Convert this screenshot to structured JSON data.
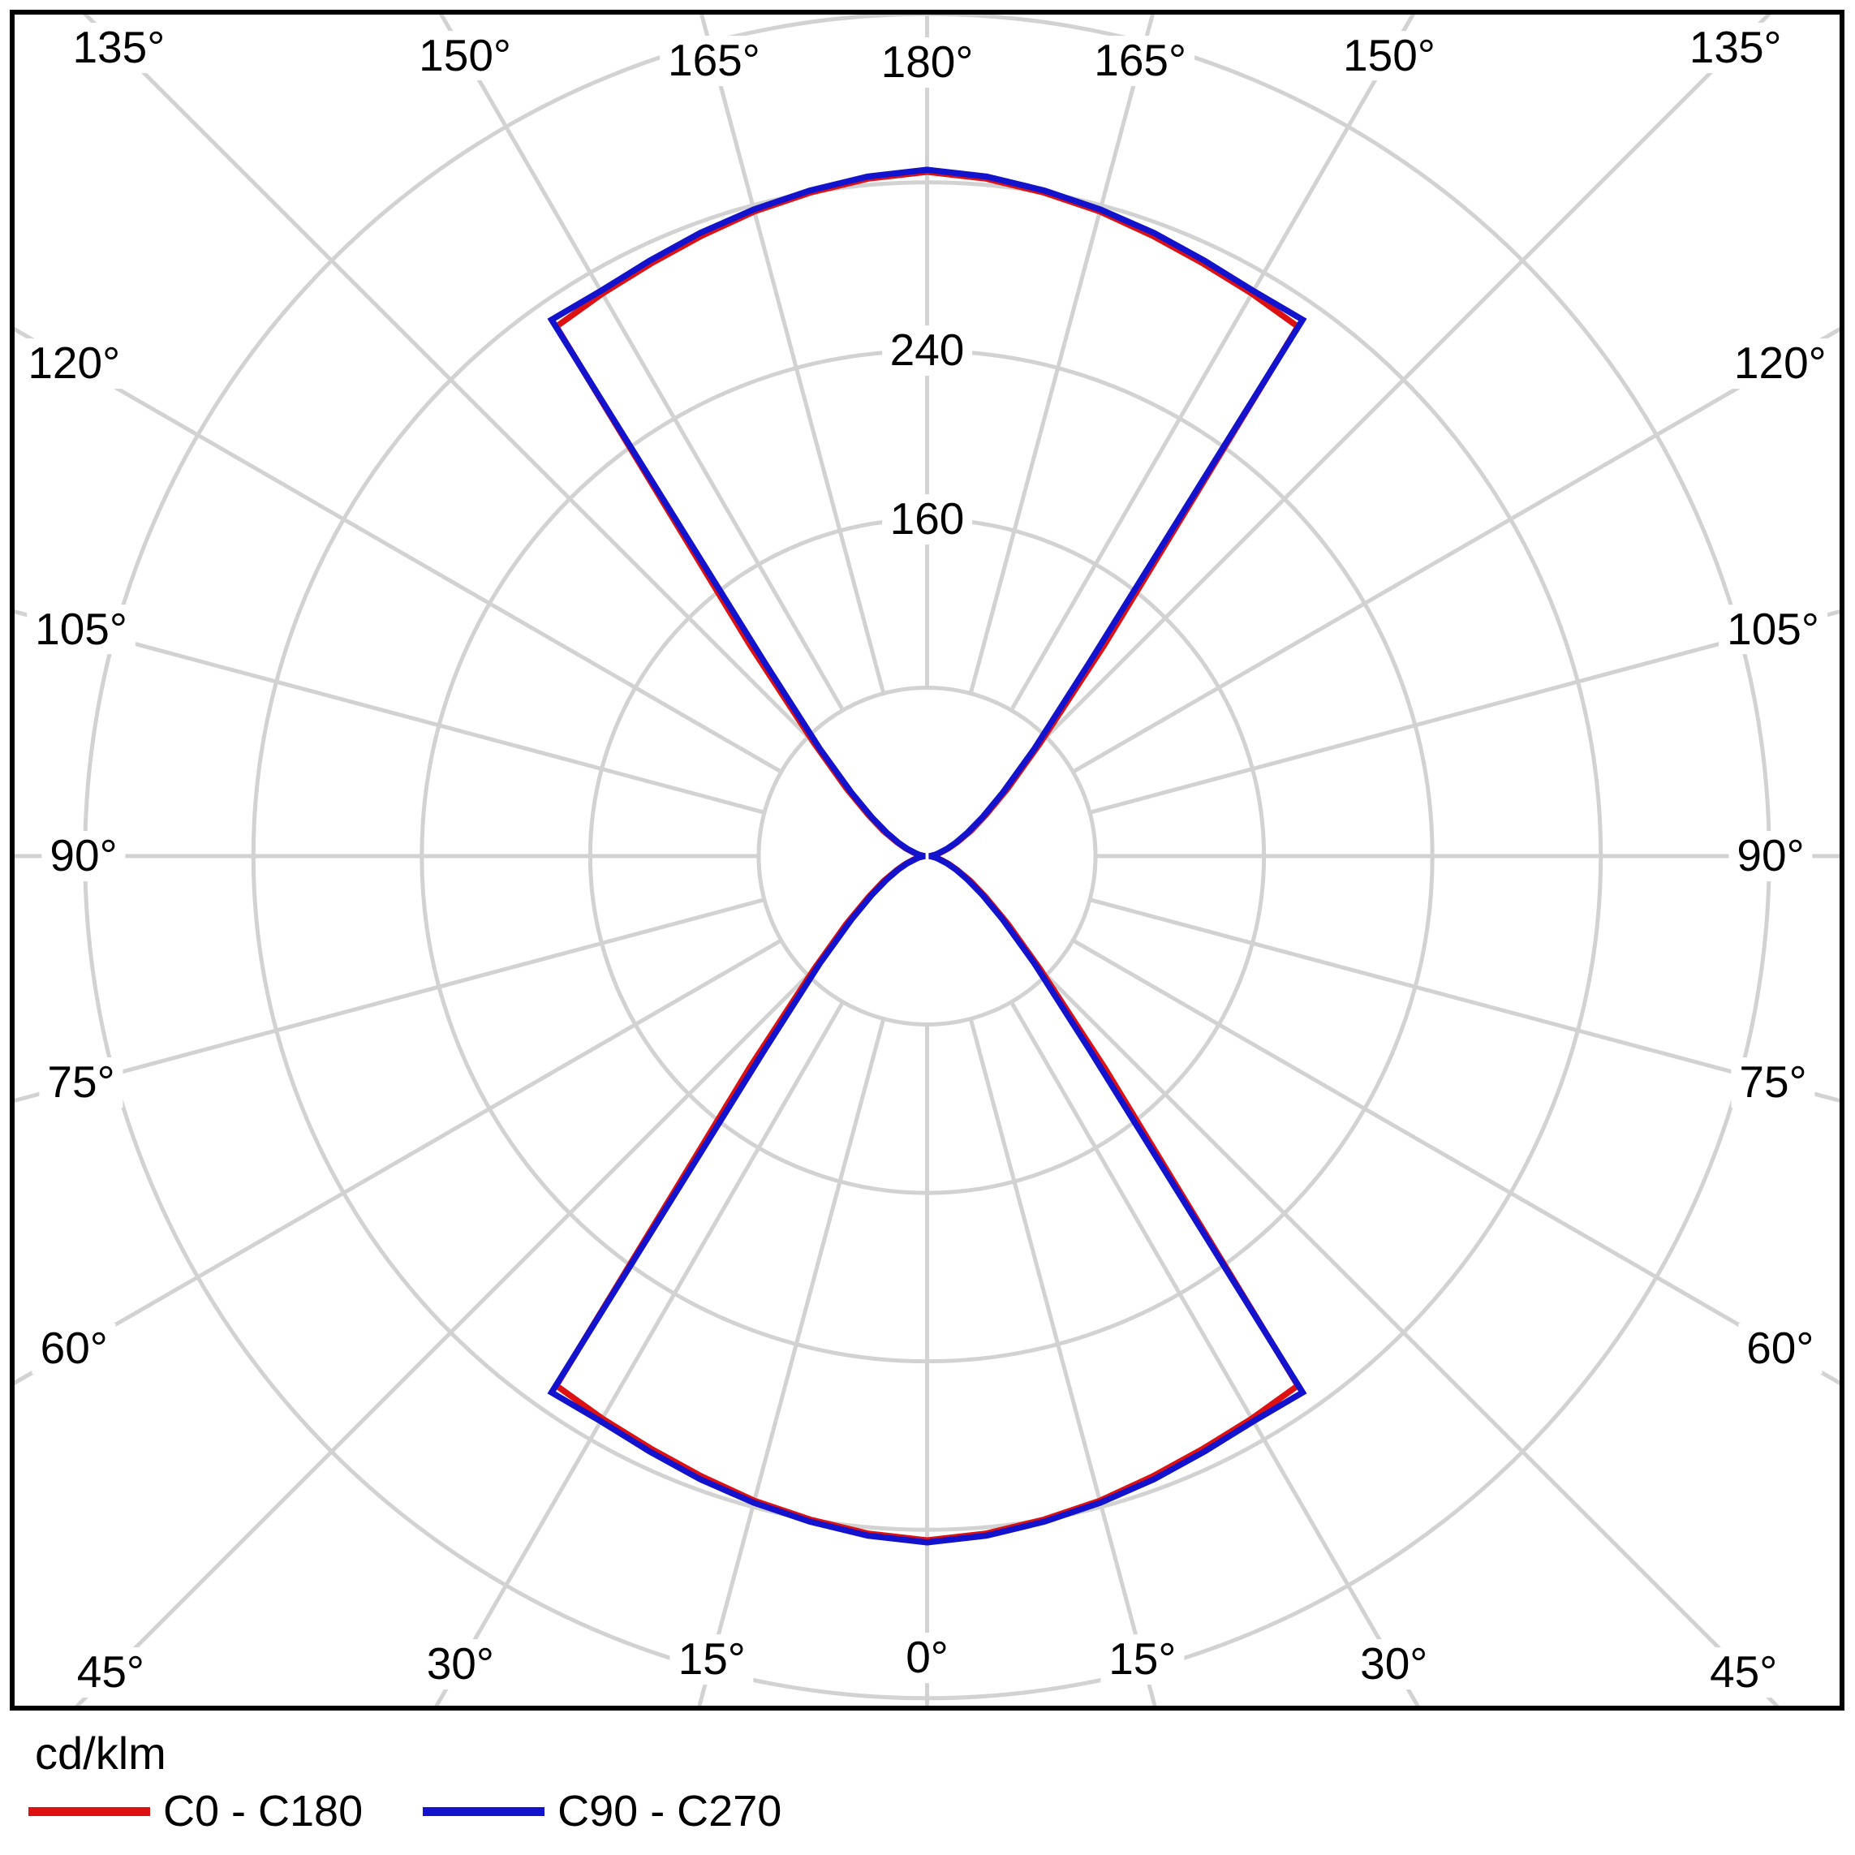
{
  "chart_data": {
    "type": "line",
    "projection": "polar",
    "description": "Luminous intensity distribution curve (photometric polar diagram)",
    "units_label": "cd/klm",
    "gamma_start_deg": 0,
    "gamma_step_deg": 5,
    "series": [
      {
        "name": "C0 - C180",
        "color": "#dd1111",
        "values": [
          325,
          323,
          320,
          317,
          313.5,
          310.5,
          308.5,
          307,
          131,
          76,
          50,
          34,
          24,
          16,
          11,
          7,
          4.5,
          2.5,
          1,
          2.5,
          4.5,
          7,
          11,
          16,
          24,
          34,
          50,
          76,
          131,
          307,
          308.5,
          310.5,
          313.5,
          317,
          320,
          323,
          325
        ]
      },
      {
        "name": "C90 - C270",
        "color": "#1312cc",
        "values": [
          326,
          324,
          321,
          318,
          315,
          312,
          310,
          311,
          120,
          72,
          47,
          32,
          22,
          15,
          10,
          6,
          4,
          2,
          1,
          2,
          4,
          6,
          10,
          15,
          22,
          32,
          47,
          72,
          120,
          311,
          310,
          312,
          315,
          318,
          321,
          324,
          326
        ]
      }
    ],
    "rings": [
      80,
      160,
      240,
      320,
      400
    ],
    "ring_labels": [
      {
        "value": 240,
        "text": "240"
      },
      {
        "value": 160,
        "text": "160"
      }
    ],
    "rmax": 400,
    "angle_step_deg": 15,
    "angle_labels": [
      "0°",
      "15°",
      "30°",
      "45°",
      "60°",
      "75°",
      "90°",
      "105°",
      "120°",
      "135°",
      "150°",
      "165°",
      "180°",
      "165°",
      "150°",
      "135°",
      "120°",
      "105°",
      "90°",
      "75°",
      "60°",
      "45°",
      "30°",
      "15°"
    ],
    "grid_color": "#d2d2d2",
    "frame_color": "#000000",
    "legend_position": "bottom-left",
    "grid": true
  }
}
